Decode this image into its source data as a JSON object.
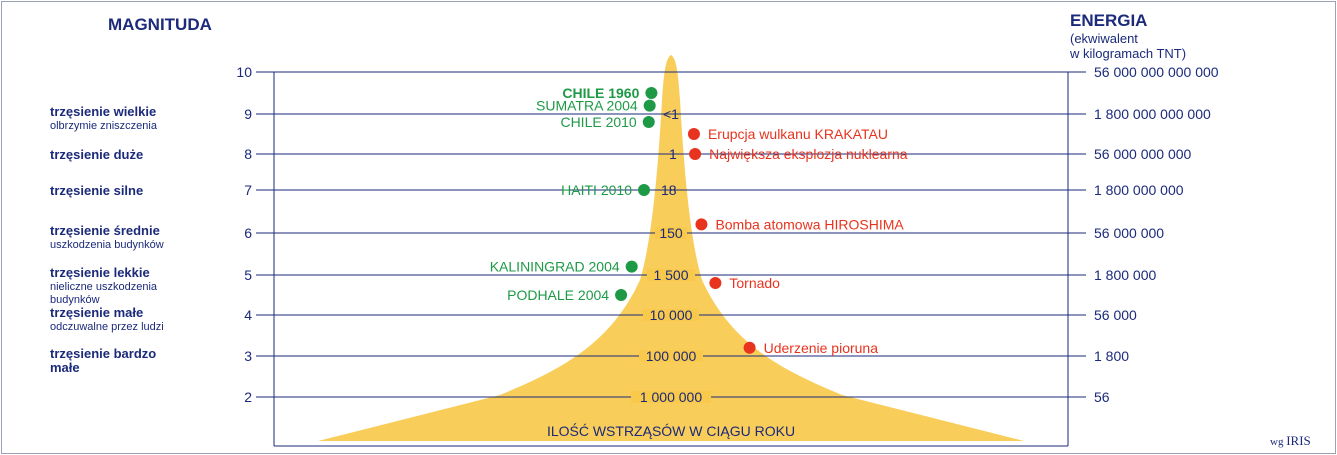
{
  "left_title": "MAGNITUDA",
  "right_title": "ENERGIA",
  "right_subtitle_1": "(ekwiwalent",
  "right_subtitle_2": "w kilogramach TNT)",
  "bottom_label": "ILOŚĆ WSTRZĄSÓW W CIĄGU ROKU",
  "credit_prefix": "wg",
  "credit_name": "IRIS",
  "colors": {
    "navy": "#1b2a7a",
    "green": "#1e9a46",
    "red": "#e8341f",
    "peak": "#f9c94b",
    "frame": "#1b2a7a"
  },
  "magnitude_range": [
    1.1,
    10
  ],
  "levels": [
    {
      "mag": 10,
      "label": "10",
      "energy": "56 000 000 000 000",
      "count": ""
    },
    {
      "mag": 9,
      "label": "9",
      "energy": "1 800 000 000 000",
      "count": "<1"
    },
    {
      "mag": 8,
      "label": "8",
      "energy": "56 000 000 000",
      "count": "1"
    },
    {
      "mag": 7,
      "label": "7",
      "energy": "1 800 000 000",
      "count": "18"
    },
    {
      "mag": 6,
      "label": "6",
      "energy": "56 000 000",
      "count": "150"
    },
    {
      "mag": 5,
      "label": "5",
      "energy": "1 800 000",
      "count": "1 500"
    },
    {
      "mag": 4,
      "label": "4",
      "energy": "56 000",
      "count": "10 000"
    },
    {
      "mag": 3,
      "label": "3",
      "energy": "1 800",
      "count": "100 000"
    },
    {
      "mag": 2,
      "label": "2",
      "energy": "56",
      "count": "1 000 000"
    }
  ],
  "categories": [
    {
      "mag": 9,
      "bold": "trzęsienie wielkie",
      "lines": [
        "olbrzymie zniszczenia"
      ]
    },
    {
      "mag": 8,
      "bold": "trzęsienie duże",
      "lines": []
    },
    {
      "mag": 7,
      "bold": "trzęsienie silne",
      "lines": []
    },
    {
      "mag": 6,
      "bold": "trzęsienie średnie",
      "lines": [
        "uszkodzenia budynków"
      ]
    },
    {
      "mag": 5,
      "bold": "trzęsienie lekkie",
      "lines": [
        "nieliczne uszkodzenia",
        "budynków"
      ]
    },
    {
      "mag": 4,
      "bold": "trzęsienie małe",
      "lines": [
        "odczuwalne przez ludzi"
      ]
    },
    {
      "mag": 3,
      "bold": "trzęsienie bardzo",
      "bold2": "małe",
      "lines": []
    }
  ],
  "earthquakes": [
    {
      "name": "CHILE 1960",
      "mag": 9.5,
      "bold": true
    },
    {
      "name": "SUMATRA 2004",
      "mag": 9.2,
      "bold": false
    },
    {
      "name": "CHILE 2010",
      "mag": 8.8,
      "bold": false
    },
    {
      "name": "HAITI 2010",
      "mag": 7.0,
      "bold": false
    },
    {
      "name": "KALININGRAD 2004",
      "mag": 5.2,
      "bold": false
    },
    {
      "name": "PODHALE 2004",
      "mag": 4.5,
      "bold": false
    }
  ],
  "events": [
    {
      "name": "Erupcja wulkanu KRAKATAU",
      "mag": 8.5
    },
    {
      "name": "Największa eksplozja nuklearna",
      "mag": 8.0
    },
    {
      "name": "Bomba atomowa HIROSHIMA",
      "mag": 6.2
    },
    {
      "name": "Tornado",
      "mag": 4.8
    },
    {
      "name": "Uderzenie pioruna",
      "mag": 3.2
    }
  ]
}
